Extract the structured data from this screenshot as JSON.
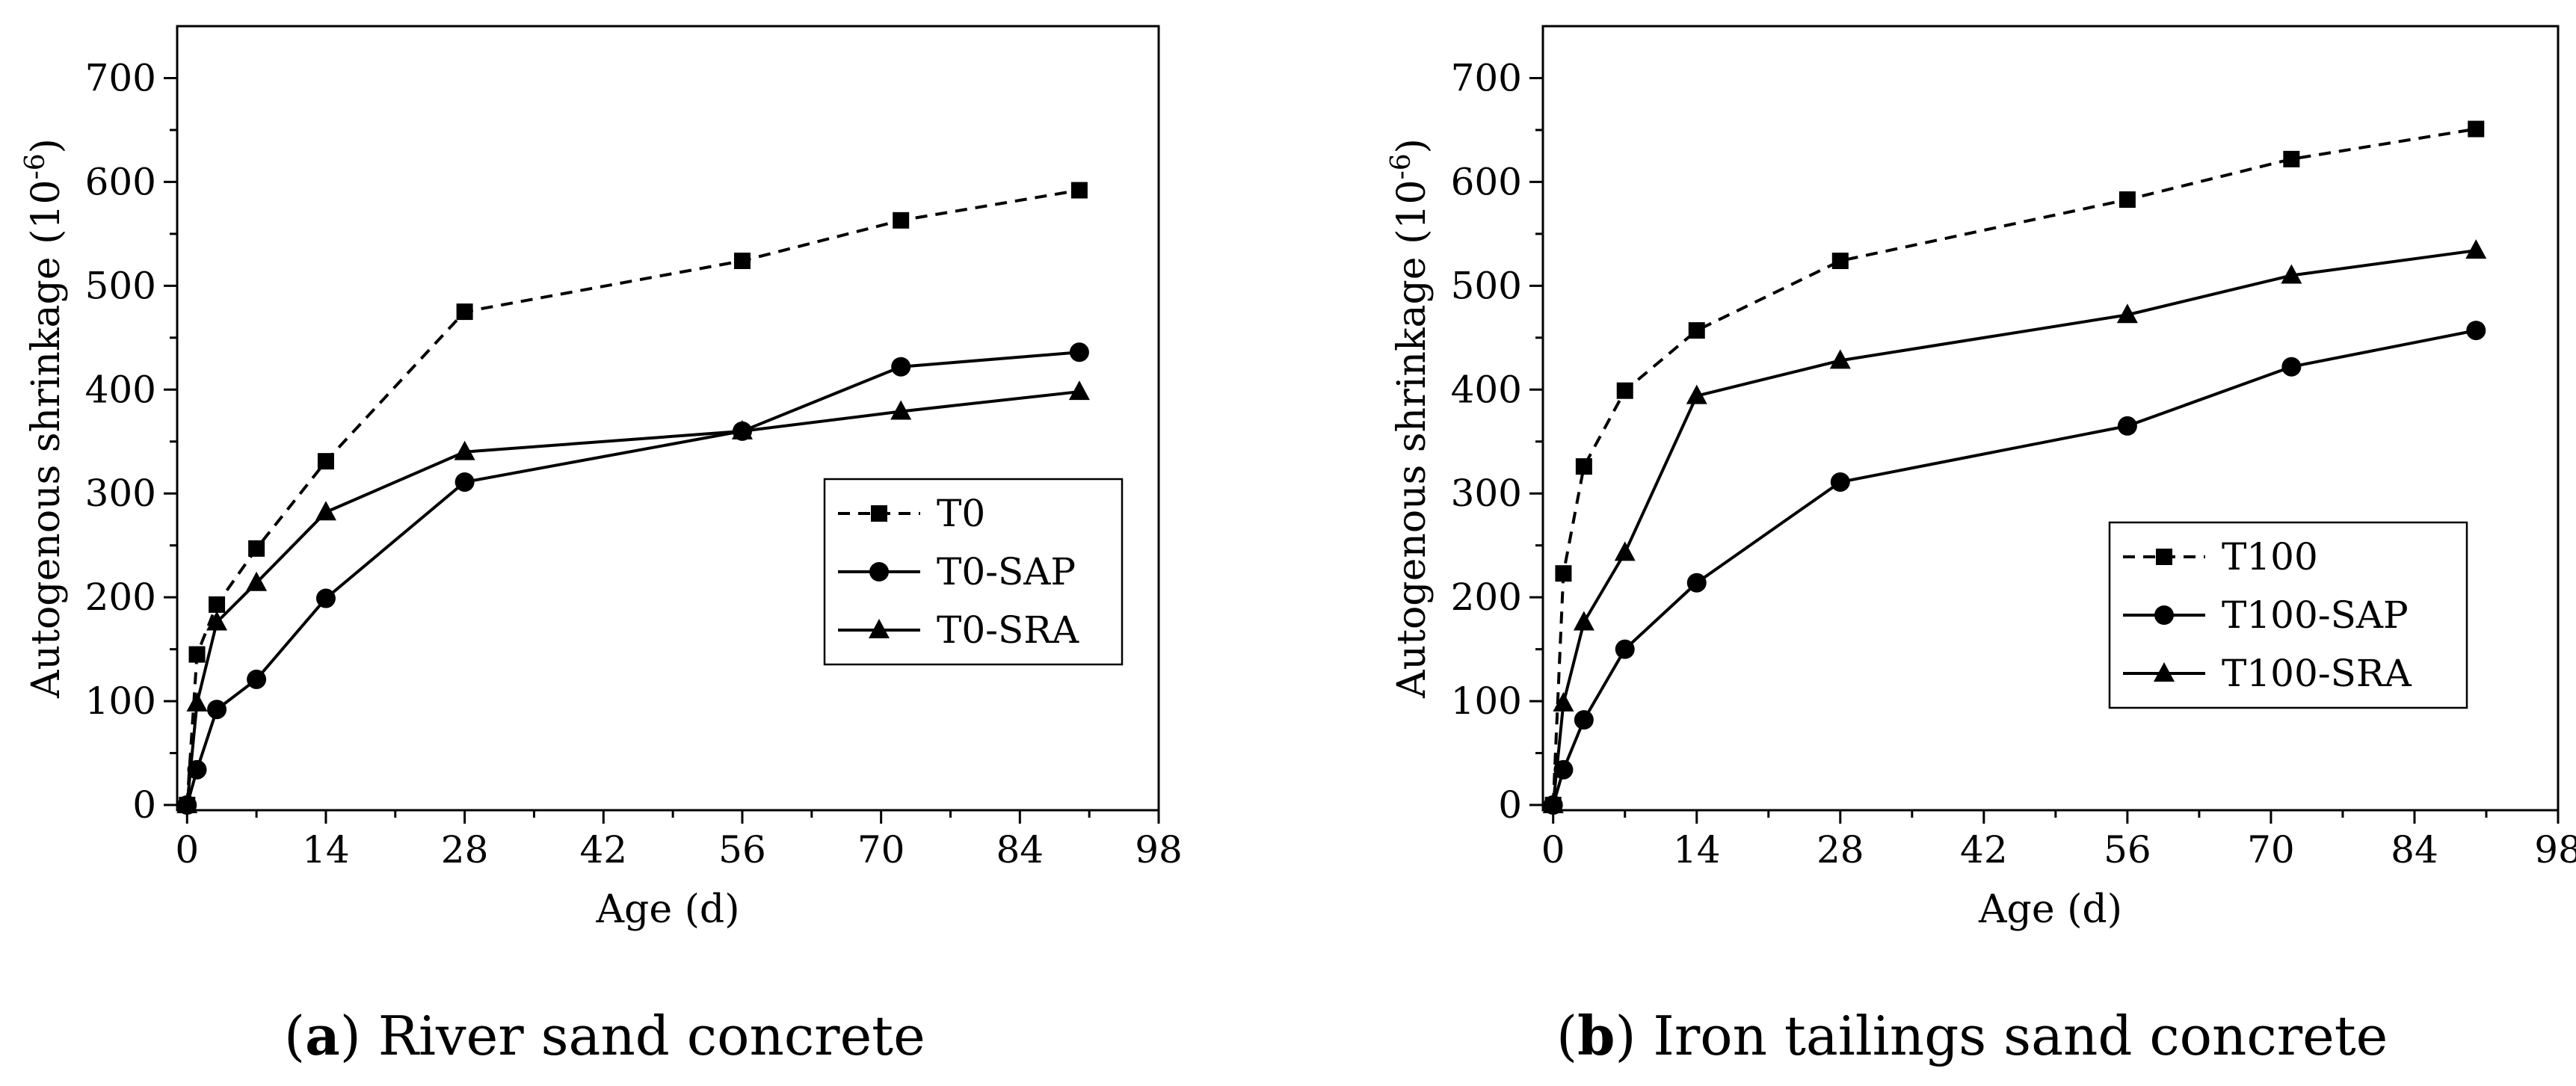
{
  "chart_data": [
    {
      "type": "line",
      "caption_letter": "a",
      "caption_text": "River sand concrete",
      "xlabel": "Age (d)",
      "ylabel": "Autogenous shrinkage (10",
      "ylabel_sup": "-6",
      "ylabel_end": ")",
      "xlim": [
        -1,
        98
      ],
      "ylim": [
        -5,
        750
      ],
      "xticks": [
        0,
        14,
        28,
        42,
        56,
        70,
        84,
        98
      ],
      "yticks": [
        0,
        100,
        200,
        300,
        400,
        500,
        600,
        700
      ],
      "legend_position": "right",
      "series": [
        {
          "name": "T0",
          "marker": "square",
          "dash": true,
          "x": [
            0,
            1,
            3,
            7,
            14,
            28,
            56,
            72,
            90
          ],
          "y": [
            0,
            145,
            193,
            247,
            331,
            475,
            524,
            563,
            592
          ]
        },
        {
          "name": "T0-SAP",
          "marker": "circle",
          "dash": false,
          "x": [
            0,
            1,
            3,
            7,
            14,
            28,
            56,
            72,
            90
          ],
          "y": [
            0,
            34,
            92,
            121,
            199,
            311,
            360,
            422,
            436
          ]
        },
        {
          "name": "T0-SRA",
          "marker": "triangle",
          "dash": false,
          "x": [
            0,
            1,
            3,
            7,
            14,
            28,
            56,
            72,
            90
          ],
          "y": [
            0,
            98,
            176,
            214,
            282,
            340,
            360,
            379,
            398
          ]
        }
      ]
    },
    {
      "type": "line",
      "caption_letter": "b",
      "caption_text": "Iron tailings sand concrete",
      "xlabel": "Age (d)",
      "ylabel": "Autogenous shrinkage (10",
      "ylabel_sup": "-6",
      "ylabel_end": ")",
      "xlim": [
        -1,
        98
      ],
      "ylim": [
        -5,
        750
      ],
      "xticks": [
        0,
        14,
        28,
        42,
        56,
        70,
        84,
        98
      ],
      "yticks": [
        0,
        100,
        200,
        300,
        400,
        500,
        600,
        700
      ],
      "legend_position": "right",
      "series": [
        {
          "name": "T100",
          "marker": "square",
          "dash": true,
          "x": [
            0,
            1,
            3,
            7,
            14,
            28,
            56,
            72,
            90
          ],
          "y": [
            0,
            223,
            326,
            399,
            457,
            524,
            583,
            622,
            651
          ]
        },
        {
          "name": "T100-SAP",
          "marker": "circle",
          "dash": false,
          "x": [
            0,
            1,
            3,
            7,
            14,
            28,
            56,
            72,
            90
          ],
          "y": [
            0,
            34,
            82,
            150,
            214,
            311,
            365,
            422,
            457
          ]
        },
        {
          "name": "T100-SRA",
          "marker": "triangle",
          "dash": false,
          "x": [
            0,
            1,
            3,
            7,
            14,
            28,
            56,
            72,
            90
          ],
          "y": [
            0,
            98,
            176,
            243,
            394,
            428,
            472,
            510,
            534
          ]
        }
      ]
    }
  ]
}
